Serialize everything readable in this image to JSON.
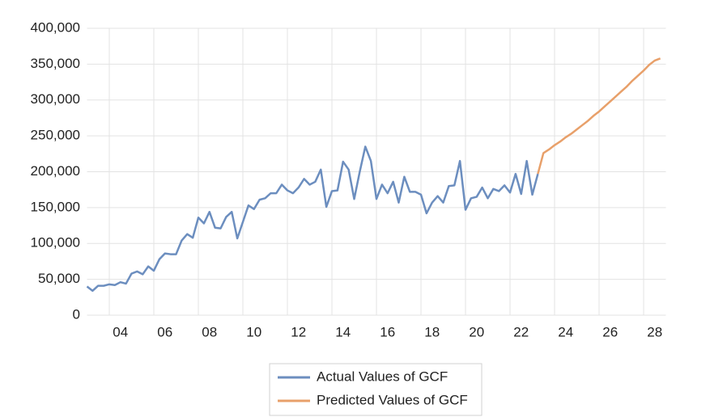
{
  "chart_data": {
    "type": "line",
    "series": [
      {
        "name": "Actual Values of GCF",
        "color": "#6c8ebf",
        "x": [
          2003,
          2003.25,
          2003.5,
          2003.75,
          2004,
          2004.25,
          2004.5,
          2004.75,
          2005,
          2005.25,
          2005.5,
          2005.75,
          2006,
          2006.25,
          2006.5,
          2006.75,
          2007,
          2007.25,
          2007.5,
          2007.75,
          2008,
          2008.25,
          2008.5,
          2008.75,
          2009,
          2009.25,
          2009.5,
          2009.75,
          2010,
          2010.25,
          2010.5,
          2010.75,
          2011,
          2011.25,
          2011.5,
          2011.75,
          2012,
          2012.25,
          2012.5,
          2012.75,
          2013,
          2013.25,
          2013.5,
          2013.75,
          2014,
          2014.25,
          2014.5,
          2014.75,
          2015,
          2015.25,
          2015.5,
          2015.75,
          2016,
          2016.25,
          2016.5,
          2016.75,
          2017,
          2017.25,
          2017.5,
          2017.75,
          2018,
          2018.25,
          2018.5,
          2018.75,
          2019,
          2019.25,
          2019.5,
          2019.75,
          2020,
          2020.25,
          2020.5,
          2020.75,
          2021,
          2021.25,
          2021.5,
          2021.75,
          2022,
          2022.25,
          2022.5,
          2022.75,
          2023,
          2023.25
        ],
        "values": [
          40000,
          34000,
          41000,
          41000,
          43000,
          42000,
          46000,
          44000,
          58000,
          61000,
          57000,
          68000,
          62000,
          78000,
          86000,
          85000,
          85000,
          104000,
          113000,
          108000,
          136000,
          128000,
          144000,
          122000,
          121000,
          137000,
          144000,
          107000,
          130000,
          153000,
          148000,
          161000,
          163000,
          170000,
          170000,
          182000,
          174000,
          170000,
          178000,
          190000,
          182000,
          186000,
          203000,
          151000,
          173000,
          174000,
          214000,
          203000,
          162000,
          200000,
          235000,
          215000,
          162000,
          182000,
          170000,
          186000,
          157000,
          193000,
          172000,
          172000,
          168000,
          142000,
          157000,
          166000,
          157000,
          180000,
          181000,
          215000,
          147000,
          163000,
          165000,
          178000,
          163000,
          176000,
          173000,
          181000,
          171000,
          197000,
          169000,
          215000,
          168000,
          197000
        ]
      },
      {
        "name": "Predicted Values of GCF",
        "color": "#e8a06a",
        "x": [
          2023.25,
          2023.5,
          2023.75,
          2024,
          2024.25,
          2024.5,
          2024.75,
          2025,
          2025.25,
          2025.5,
          2025.75,
          2026,
          2026.25,
          2026.5,
          2026.75,
          2027,
          2027.25,
          2027.5,
          2027.75,
          2028,
          2028.25,
          2028.5,
          2028.75
        ],
        "values": [
          197000,
          226000,
          231000,
          237000,
          242000,
          248000,
          253000,
          259000,
          265000,
          271000,
          278000,
          284000,
          291000,
          298000,
          305000,
          312000,
          319000,
          327000,
          334000,
          341000,
          349000,
          355000,
          358000
        ]
      }
    ],
    "xlim": [
      2003,
      2029
    ],
    "xticks": [
      {
        "value": 2004,
        "label": "04"
      },
      {
        "value": 2006,
        "label": "06"
      },
      {
        "value": 2008,
        "label": "08"
      },
      {
        "value": 2010,
        "label": "10"
      },
      {
        "value": 2012,
        "label": "12"
      },
      {
        "value": 2014,
        "label": "14"
      },
      {
        "value": 2016,
        "label": "16"
      },
      {
        "value": 2018,
        "label": "18"
      },
      {
        "value": 2020,
        "label": "20"
      },
      {
        "value": 2022,
        "label": "22"
      },
      {
        "value": 2024,
        "label": "24"
      },
      {
        "value": 2026,
        "label": "26"
      },
      {
        "value": 2028,
        "label": "28"
      }
    ],
    "ylim": [
      0,
      400000
    ],
    "yticks": [
      0,
      {
        "value": 50000,
        "label": "50,000"
      },
      {
        "value": 100000,
        "label": "100,000"
      },
      {
        "value": 150000,
        "label": "150,000"
      },
      {
        "value": 200000,
        "label": "200,000"
      },
      {
        "value": 250000,
        "label": "250,000"
      },
      {
        "value": 300000,
        "label": "300,000"
      },
      {
        "value": 350000,
        "label": "350,000"
      },
      {
        "value": 400000,
        "label": "400,000"
      }
    ],
    "grid": true,
    "legend": "bottom"
  }
}
